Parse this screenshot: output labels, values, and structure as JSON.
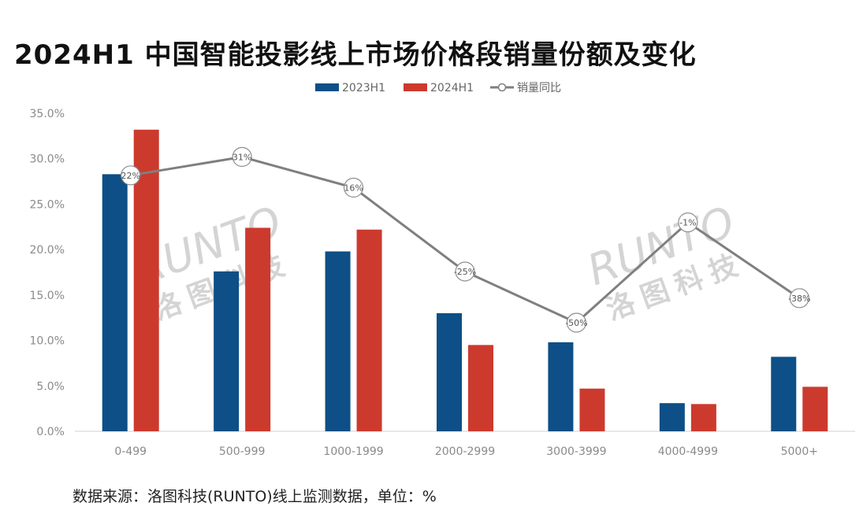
{
  "title": "2024H1 中国智能投影线上市场价格段销量份额及变化",
  "source_note": "数据来源：洛图科技(RUNTO)线上监测数据，单位：%",
  "watermark": {
    "latin": "RUNTO",
    "chinese": "洛图科技"
  },
  "colors": {
    "s2023": "#0d4f86",
    "s2024": "#cc3a2e",
    "yoy": "#7f7f7f",
    "axis": "#d0d0d0"
  },
  "chart_data": {
    "type": "bar",
    "categories": [
      "0-499",
      "500-999",
      "1000-1999",
      "2000-2999",
      "3000-3999",
      "4000-4999",
      "5000+"
    ],
    "series": [
      {
        "name": "2023H1",
        "values": [
          28.3,
          17.6,
          19.8,
          13.0,
          9.8,
          3.1,
          8.2
        ]
      },
      {
        "name": "2024H1",
        "values": [
          33.2,
          22.4,
          22.2,
          9.5,
          4.7,
          3.0,
          4.9
        ]
      }
    ],
    "line_series": {
      "name": "销量同比",
      "labels": [
        "22%",
        "31%",
        "16%",
        "-25%",
        "-50%",
        "-1%",
        "-38%"
      ],
      "values": [
        22,
        31,
        16,
        -25,
        -50,
        -1,
        -38
      ],
      "range": [
        -60,
        40
      ]
    },
    "y_ticks": [
      "0.0%",
      "5.0%",
      "10.0%",
      "15.0%",
      "20.0%",
      "25.0%",
      "30.0%",
      "35.0%"
    ],
    "ylim": [
      0,
      35
    ],
    "legend_position": "top-center",
    "grid": false
  }
}
